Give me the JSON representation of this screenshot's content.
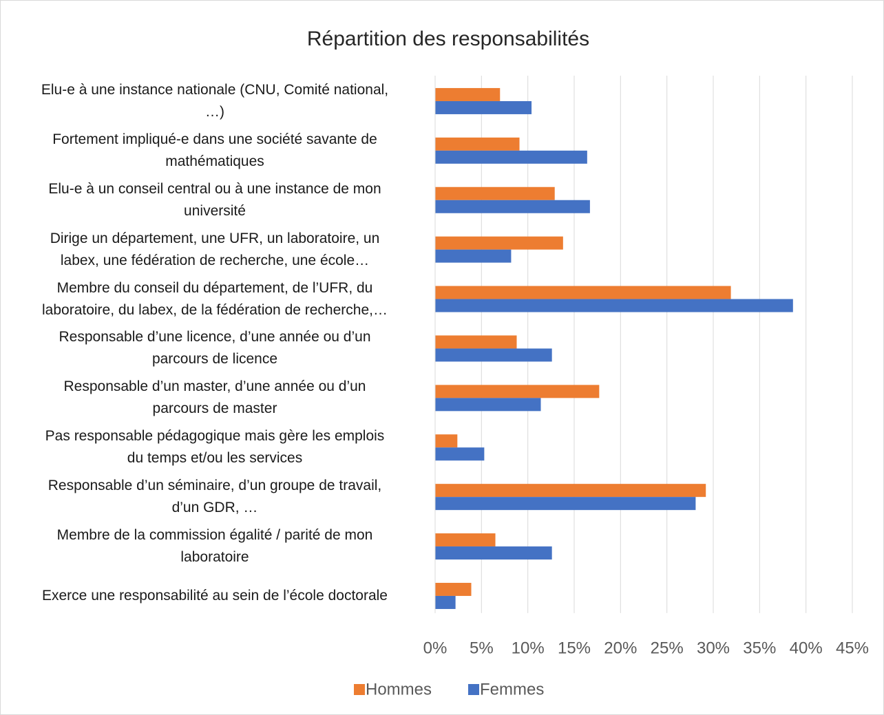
{
  "chart_data": {
    "type": "bar",
    "orientation": "horizontal",
    "title": "Répartition des responsabilités",
    "categories": [
      "Elu-e à une instance nationale (CNU, Comité national,\n…)",
      "Fortement impliqué-e dans une société savante de\nmathématiques",
      "Elu-e à un conseil central ou à une instance de mon\nuniversité",
      "Dirige un département, une UFR, un laboratoire, un\nlabex, une fédération de recherche, une école…",
      "Membre du conseil du département, de l’UFR, du\nlaboratoire, du labex, de la fédération de recherche,…",
      "Responsable d’une licence, d’une année ou d’un\nparcours de licence",
      "Responsable d’un master, d’une année ou d’un\nparcours de master",
      "Pas responsable pédagogique mais gère les emplois\ndu temps et/ou les services",
      "Responsable d’un séminaire, d’un groupe de travail,\nd’un GDR, …",
      "Membre de la commission égalité / parité de mon\nlaboratoire",
      "Exerce une responsabilité au sein de l’école doctorale"
    ],
    "series": [
      {
        "name": "Hommes",
        "color": "#ed7d31",
        "values": [
          7.0,
          9.1,
          12.9,
          13.8,
          31.9,
          8.8,
          17.7,
          2.4,
          29.2,
          6.5,
          3.9
        ]
      },
      {
        "name": "Femmes",
        "color": "#4472c4",
        "values": [
          10.4,
          16.4,
          16.7,
          8.2,
          38.6,
          12.6,
          11.4,
          5.3,
          28.1,
          12.6,
          2.2
        ]
      }
    ],
    "xlim": [
      0,
      45
    ],
    "xticks": [
      {
        "value": 0,
        "label": "0%"
      },
      {
        "value": 5,
        "label": "5%"
      },
      {
        "value": 10,
        "label": "10%"
      },
      {
        "value": 15,
        "label": "15%"
      },
      {
        "value": 20,
        "label": "20%"
      },
      {
        "value": 25,
        "label": "25%"
      },
      {
        "value": 30,
        "label": "30%"
      },
      {
        "value": 35,
        "label": "35%"
      },
      {
        "value": 40,
        "label": "40%"
      },
      {
        "value": 45,
        "label": "45%"
      }
    ],
    "grid": true,
    "legend": "bottom"
  }
}
